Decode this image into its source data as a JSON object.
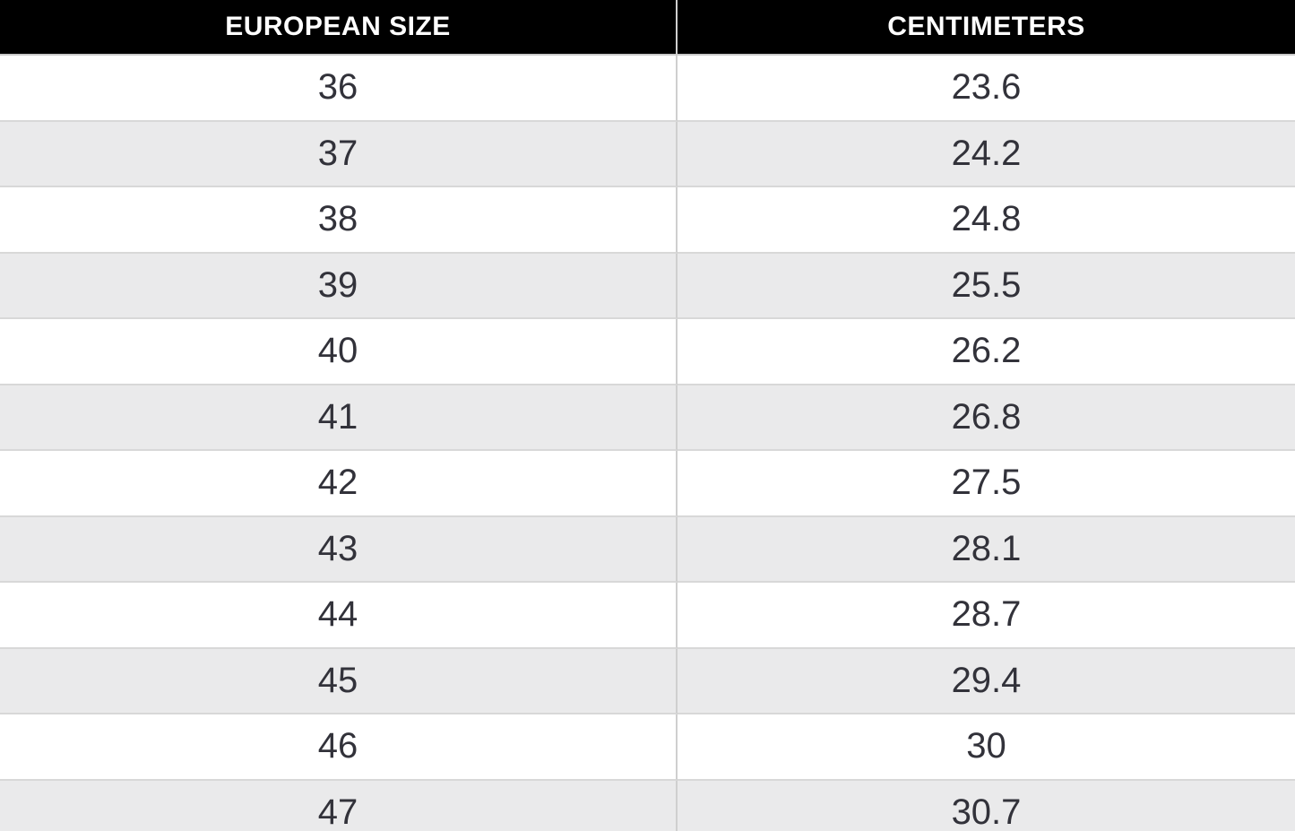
{
  "colors": {
    "header_bg": "#000000",
    "header_text": "#ffffff",
    "row_white": "#ffffff",
    "row_alt": "#eaeaeb",
    "row_border": "#d8d8d8",
    "header_border": "#c9c9c9",
    "column_divider": "#cfcfcf",
    "cell_text": "#32323a",
    "page_bg": "#ffffff"
  },
  "chart_data": {
    "type": "table",
    "columns": [
      "EUROPEAN SIZE",
      "CENTIMETERS"
    ],
    "rows": [
      [
        "36",
        "23.6"
      ],
      [
        "37",
        "24.2"
      ],
      [
        "38",
        "24.8"
      ],
      [
        "39",
        "25.5"
      ],
      [
        "40",
        "26.2"
      ],
      [
        "41",
        "26.8"
      ],
      [
        "42",
        "27.5"
      ],
      [
        "43",
        "28.1"
      ],
      [
        "44",
        "28.7"
      ],
      [
        "45",
        "29.4"
      ],
      [
        "46",
        "30"
      ],
      [
        "47",
        "30.7"
      ]
    ]
  }
}
